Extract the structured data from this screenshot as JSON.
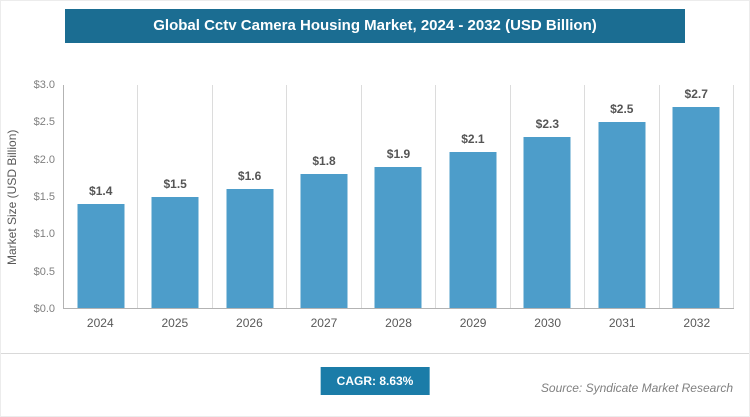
{
  "title": "Global Cctv Camera Housing Market, 2024 - 2032 (USD Billion)",
  "colors": {
    "title_bg": "#1b6d92",
    "bar": "#4d9dca",
    "badge_bg": "#1b7ca8"
  },
  "chart_data": {
    "type": "bar",
    "title": "Global Cctv Camera Housing Market, 2024 - 2032 (USD Billion)",
    "categories": [
      "2024",
      "2025",
      "2026",
      "2027",
      "2028",
      "2029",
      "2030",
      "2031",
      "2032"
    ],
    "values": [
      1.4,
      1.5,
      1.6,
      1.8,
      1.9,
      2.1,
      2.3,
      2.5,
      2.7
    ],
    "bar_labels": [
      "$1.4",
      "$1.5",
      "$1.6",
      "$1.8",
      "$1.9",
      "$2.1",
      "$2.3",
      "$2.5",
      "$2.7"
    ],
    "xlabel": "",
    "ylabel": "Market Size (USD Billion)",
    "ylim": [
      0,
      3.0
    ],
    "yticks": [
      0,
      0.5,
      1.0,
      1.5,
      2.0,
      2.5,
      3.0
    ],
    "ytick_labels": [
      "$0.0",
      "$0.5",
      "$1.0",
      "$1.5",
      "$2.0",
      "$2.5",
      "$3.0"
    ],
    "grid": "vertical",
    "legend": "none"
  },
  "footer": {
    "cagr_label": "CAGR: 8.63%",
    "source": "Source: Syndicate Market Research"
  }
}
